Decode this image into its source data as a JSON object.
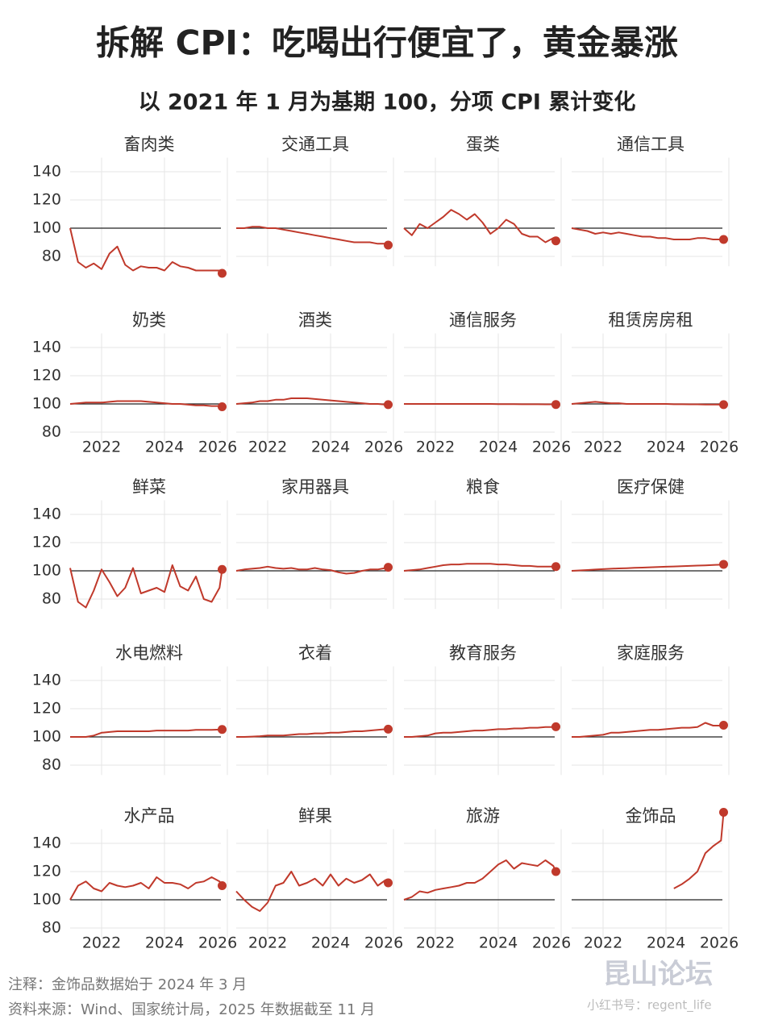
{
  "chart_data": {
    "type": "line",
    "title": "拆解 CPI：吃喝出行便宜了，黄金暴涨",
    "subtitle": "以 2021 年 1 月为基期 100，分项 CPI 累计变化",
    "x": [
      2021,
      2021.25,
      2021.5,
      2021.75,
      2022,
      2022.25,
      2022.5,
      2022.75,
      2023,
      2023.25,
      2023.5,
      2023.75,
      2024,
      2024.25,
      2024.5,
      2024.75,
      2025,
      2025.25,
      2025.5,
      2025.75,
      2025.833
    ],
    "xlim": [
      2021,
      2026
    ],
    "xticks": [
      2022,
      2024,
      2026
    ],
    "ylim": [
      73,
      150
    ],
    "yticks": [
      80,
      100,
      120,
      140
    ],
    "reference_line": 100,
    "grid": true,
    "series": [
      {
        "name": "畜肉类",
        "color": "#c0392b",
        "values": [
          100,
          76,
          72,
          75,
          71,
          82,
          87,
          74,
          70,
          73,
          72,
          72,
          70,
          76,
          73,
          72,
          70,
          70,
          70,
          70,
          68
        ]
      },
      {
        "name": "交通工具",
        "color": "#c0392b",
        "values": [
          100,
          100,
          101,
          101,
          100,
          100,
          99,
          98,
          97,
          96,
          95,
          94,
          93,
          92,
          91,
          90,
          90,
          90,
          89,
          89,
          88
        ]
      },
      {
        "name": "蛋类",
        "color": "#c0392b",
        "values": [
          100,
          95,
          103,
          100,
          104,
          108,
          113,
          110,
          106,
          110,
          104,
          96,
          100,
          106,
          103,
          96,
          94,
          94,
          90,
          93,
          91
        ]
      },
      {
        "name": "通信工具",
        "color": "#c0392b",
        "values": [
          100,
          99,
          98,
          96,
          97,
          96,
          97,
          96,
          95,
          94,
          94,
          93,
          93,
          92,
          92,
          92,
          93,
          93,
          92,
          92,
          92
        ]
      },
      {
        "name": "奶类",
        "color": "#c0392b",
        "values": [
          100,
          100.5,
          101,
          101,
          101,
          101.5,
          102,
          102,
          102,
          102,
          101.5,
          101,
          100.5,
          100,
          100,
          99.5,
          99,
          99,
          98.5,
          98.5,
          98
        ]
      },
      {
        "name": "酒类",
        "color": "#c0392b",
        "values": [
          100,
          100.5,
          101,
          102,
          102,
          103,
          103,
          104,
          104,
          104,
          103.5,
          103,
          102.5,
          102,
          101.5,
          101,
          100.5,
          100,
          100,
          99.5,
          99.5
        ]
      },
      {
        "name": "通信服务",
        "color": "#c0392b",
        "values": [
          100,
          100,
          100,
          100,
          100,
          100,
          100,
          100,
          100,
          100,
          100,
          100,
          99.9,
          99.9,
          99.9,
          99.8,
          99.8,
          99.8,
          99.7,
          99.7,
          99.6
        ]
      },
      {
        "name": "租赁房房租",
        "color": "#c0392b",
        "values": [
          100,
          100.5,
          101,
          101.5,
          101,
          100.5,
          100.5,
          100,
          100,
          100,
          100,
          100,
          100,
          99.8,
          99.8,
          99.7,
          99.7,
          99.6,
          99.6,
          99.5,
          99.5
        ]
      },
      {
        "name": "鲜菜",
        "color": "#c0392b",
        "values": [
          102,
          78,
          74,
          86,
          101,
          92,
          82,
          88,
          102,
          84,
          86,
          88,
          85,
          104,
          89,
          86,
          96,
          80,
          78,
          88,
          101
        ]
      },
      {
        "name": "家用器具",
        "color": "#c0392b",
        "values": [
          100,
          101,
          101.5,
          102,
          103,
          102,
          101.5,
          102,
          101,
          101,
          102,
          101,
          100.5,
          99,
          98,
          98.5,
          100,
          101,
          101,
          102,
          102.5
        ]
      },
      {
        "name": "粮食",
        "color": "#c0392b",
        "values": [
          100,
          100.5,
          101,
          102,
          103,
          104,
          104.5,
          104.5,
          105,
          105,
          105,
          105,
          104.5,
          104.5,
          104,
          103.5,
          103.5,
          103,
          103,
          103,
          103
        ]
      },
      {
        "name": "医疗保健",
        "color": "#c0392b",
        "values": [
          100,
          100.3,
          100.6,
          100.9,
          101.2,
          101.5,
          101.7,
          101.9,
          102.1,
          102.3,
          102.5,
          102.7,
          102.9,
          103.1,
          103.3,
          103.5,
          103.7,
          103.9,
          104.1,
          104.4,
          104.6
        ]
      },
      {
        "name": "水电燃料",
        "color": "#c0392b",
        "values": [
          100,
          100,
          100,
          101,
          103,
          103.5,
          104,
          104,
          104,
          104,
          104,
          104.5,
          104.5,
          104.5,
          104.5,
          104.5,
          105,
          105,
          105,
          105.2,
          105.3
        ]
      },
      {
        "name": "衣着",
        "color": "#c0392b",
        "values": [
          100,
          100,
          100.2,
          100.5,
          101,
          101,
          101,
          101.5,
          102,
          102,
          102.5,
          102.5,
          103,
          103,
          103.5,
          104,
          104,
          104.5,
          105,
          105.5,
          105.5
        ]
      },
      {
        "name": "教育服务",
        "color": "#c0392b",
        "values": [
          100,
          100,
          100.5,
          101,
          102.5,
          103,
          103,
          103.5,
          104,
          104.5,
          104.5,
          105,
          105.5,
          105.5,
          106,
          106,
          106.5,
          106.5,
          107,
          107,
          107.2
        ]
      },
      {
        "name": "家庭服务",
        "color": "#c0392b",
        "values": [
          100,
          100,
          100.5,
          101,
          101.5,
          103,
          103,
          103.5,
          104,
          104.5,
          105,
          105,
          105.5,
          106,
          106.5,
          106.5,
          107,
          110,
          108,
          108,
          108.3
        ]
      },
      {
        "name": "水产品",
        "color": "#c0392b",
        "values": [
          100,
          110,
          113,
          108,
          106,
          112,
          110,
          109,
          110,
          112,
          108,
          116,
          112,
          112,
          111,
          108,
          112,
          113,
          116,
          113,
          110
        ]
      },
      {
        "name": "鲜果",
        "color": "#c0392b",
        "values": [
          106,
          100,
          95,
          92,
          98,
          110,
          112,
          120,
          110,
          112,
          115,
          110,
          118,
          110,
          115,
          112,
          114,
          118,
          110,
          114,
          112
        ]
      },
      {
        "name": "旅游",
        "color": "#c0392b",
        "values": [
          100,
          102,
          106,
          105,
          107,
          108,
          109,
          110,
          112,
          112,
          115,
          120,
          125,
          128,
          122,
          126,
          125,
          124,
          128,
          124,
          120
        ]
      },
      {
        "name": "金饰品",
        "color": "#c0392b",
        "values": [
          null,
          null,
          null,
          null,
          null,
          null,
          null,
          null,
          null,
          null,
          null,
          null,
          null,
          108,
          111,
          115,
          120,
          133,
          138,
          142,
          162
        ]
      }
    ],
    "notes": [
      "注释：金饰品数据始于 2024 年 3 月",
      "资料来源：Wind、国家统计局，2025 年数据截至 11 月"
    ],
    "watermark": [
      "昆山论坛",
      "小红书号：regent_life"
    ]
  }
}
